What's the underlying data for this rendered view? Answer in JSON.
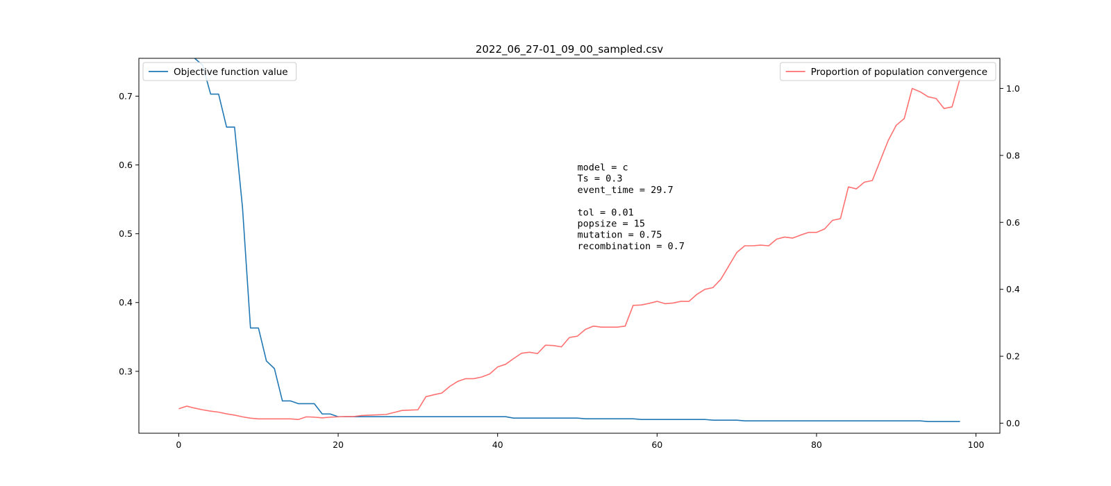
{
  "chart_data": {
    "type": "line",
    "title": "2022_06_27-01_09_00_sampled.csv",
    "xlabel": "",
    "ylabel_left": "",
    "ylabel_right": "",
    "xlim": [
      -5,
      103
    ],
    "ylim_left": [
      0.21,
      0.755
    ],
    "ylim_right": [
      -0.03,
      1.09
    ],
    "x_ticks": [
      0,
      20,
      40,
      60,
      80,
      100
    ],
    "y_left_ticks": [
      0.3,
      0.4,
      0.5,
      0.6,
      0.7
    ],
    "y_right_ticks": [
      0.0,
      0.2,
      0.4,
      0.6,
      0.8,
      1.0
    ],
    "grid": false,
    "series": [
      {
        "name": "Objective function value",
        "axis": "left",
        "color": "#1f77b4",
        "legend": "top-left",
        "x": [
          0,
          1,
          2,
          3,
          4,
          5,
          6,
          7,
          8,
          9,
          10,
          11,
          12,
          13,
          14,
          15,
          16,
          17,
          18,
          19,
          20,
          21,
          22,
          23,
          24,
          25,
          26,
          27,
          28,
          29,
          30,
          31,
          32,
          33,
          34,
          35,
          36,
          37,
          38,
          39,
          40,
          41,
          42,
          43,
          44,
          45,
          46,
          47,
          48,
          49,
          50,
          51,
          52,
          53,
          54,
          55,
          56,
          57,
          58,
          59,
          60,
          61,
          62,
          63,
          64,
          65,
          66,
          67,
          68,
          69,
          70,
          71,
          72,
          73,
          74,
          75,
          76,
          77,
          78,
          79,
          80,
          81,
          82,
          83,
          84,
          85,
          86,
          87,
          88,
          89,
          90,
          91,
          92,
          93,
          94,
          95,
          96,
          97,
          98
        ],
        "values": [
          0.76,
          0.76,
          0.755,
          0.745,
          0.703,
          0.703,
          0.655,
          0.655,
          0.538,
          0.363,
          0.363,
          0.315,
          0.304,
          0.257,
          0.257,
          0.253,
          0.253,
          0.253,
          0.238,
          0.238,
          0.234,
          0.234,
          0.234,
          0.234,
          0.234,
          0.234,
          0.234,
          0.234,
          0.234,
          0.234,
          0.234,
          0.234,
          0.234,
          0.234,
          0.234,
          0.234,
          0.234,
          0.234,
          0.234,
          0.234,
          0.234,
          0.234,
          0.232,
          0.232,
          0.232,
          0.232,
          0.232,
          0.232,
          0.232,
          0.232,
          0.232,
          0.231,
          0.231,
          0.231,
          0.231,
          0.231,
          0.231,
          0.231,
          0.23,
          0.23,
          0.23,
          0.23,
          0.23,
          0.23,
          0.23,
          0.23,
          0.23,
          0.229,
          0.229,
          0.229,
          0.229,
          0.228,
          0.228,
          0.228,
          0.228,
          0.228,
          0.228,
          0.228,
          0.228,
          0.228,
          0.228,
          0.228,
          0.228,
          0.228,
          0.228,
          0.228,
          0.228,
          0.228,
          0.228,
          0.228,
          0.228,
          0.228,
          0.228,
          0.228,
          0.227,
          0.227,
          0.227,
          0.227,
          0.227
        ]
      },
      {
        "name": "Proportion of population convergence",
        "axis": "right",
        "color": "#ff7070",
        "legend": "top-right",
        "x": [
          0,
          1,
          2,
          3,
          4,
          5,
          6,
          7,
          8,
          9,
          10,
          11,
          12,
          13,
          14,
          15,
          16,
          17,
          18,
          19,
          20,
          21,
          22,
          23,
          24,
          25,
          26,
          27,
          28,
          29,
          30,
          31,
          32,
          33,
          34,
          35,
          36,
          37,
          38,
          39,
          40,
          41,
          42,
          43,
          44,
          45,
          46,
          47,
          48,
          49,
          50,
          51,
          52,
          53,
          54,
          55,
          56,
          57,
          58,
          59,
          60,
          61,
          62,
          63,
          64,
          65,
          66,
          67,
          68,
          69,
          70,
          71,
          72,
          73,
          74,
          75,
          76,
          77,
          78,
          79,
          80,
          81,
          82,
          83,
          84,
          85,
          86,
          87,
          88,
          89,
          90,
          91,
          92,
          93,
          94,
          95,
          96,
          97,
          98
        ],
        "values": [
          0.043,
          0.051,
          0.045,
          0.04,
          0.036,
          0.033,
          0.028,
          0.024,
          0.019,
          0.015,
          0.013,
          0.013,
          0.013,
          0.013,
          0.013,
          0.011,
          0.019,
          0.018,
          0.016,
          0.018,
          0.019,
          0.02,
          0.02,
          0.023,
          0.024,
          0.025,
          0.026,
          0.032,
          0.038,
          0.039,
          0.04,
          0.079,
          0.085,
          0.09,
          0.11,
          0.125,
          0.133,
          0.133,
          0.138,
          0.147,
          0.168,
          0.176,
          0.193,
          0.209,
          0.212,
          0.208,
          0.233,
          0.232,
          0.228,
          0.256,
          0.26,
          0.28,
          0.29,
          0.287,
          0.287,
          0.287,
          0.29,
          0.352,
          0.353,
          0.358,
          0.364,
          0.357,
          0.359,
          0.364,
          0.364,
          0.385,
          0.4,
          0.405,
          0.43,
          0.47,
          0.51,
          0.53,
          0.53,
          0.532,
          0.53,
          0.55,
          0.556,
          0.553,
          0.562,
          0.57,
          0.57,
          0.58,
          0.606,
          0.611,
          0.706,
          0.7,
          0.72,
          0.725,
          0.785,
          0.845,
          0.89,
          0.91,
          1.0,
          0.99,
          0.975,
          0.97,
          0.94,
          0.945,
          1.03
        ]
      }
    ],
    "annotation_lines": [
      "model = c",
      "Ts = 0.3",
      "event_time = 29.7",
      "",
      "tol = 0.01",
      "popsize = 15",
      "mutation = 0.75",
      "recombination = 0.7"
    ],
    "annotation_anchor": {
      "x": 50,
      "y_left": 0.592
    }
  }
}
